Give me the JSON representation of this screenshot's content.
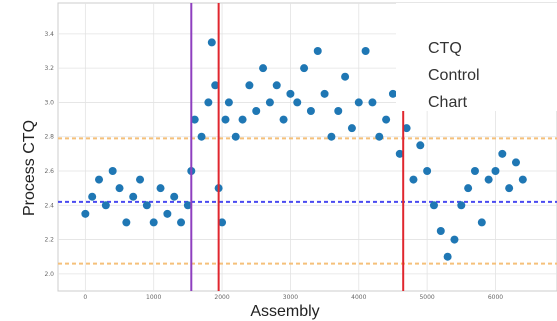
{
  "chart_data": {
    "type": "scatter",
    "ylabel": "Process CTQ",
    "xlabel": "Assembly",
    "annotation": [
      "CTQ",
      "Control",
      "Chart"
    ],
    "xlim": [
      -400,
      6900
    ],
    "ylim": [
      1.9,
      3.58
    ],
    "x_ticks": [
      "0",
      "1000",
      "2000",
      "3000",
      "4000",
      "5000",
      "6000"
    ],
    "y_ticks": [
      "2.0",
      "2.2",
      "2.4",
      "2.6",
      "2.8",
      "3.0",
      "3.2",
      "3.4"
    ],
    "grid": true,
    "colors": {
      "points": "#1f77b4",
      "center_line": "#4a4af0",
      "limit_lines": "#f5c07a",
      "phase_red": "#e0262e",
      "phase_purple": "#8e3fbf"
    },
    "center_line": 2.42,
    "limit_lines": [
      2.06,
      2.79
    ],
    "phase_lines": [
      {
        "x": 1550,
        "color": "purple"
      },
      {
        "x": 1950,
        "color": "red"
      },
      {
        "x": 4650,
        "color": "red"
      }
    ],
    "series": [
      {
        "x": [
          0,
          100,
          200,
          300,
          400,
          500,
          600,
          700,
          800,
          900,
          1000,
          1100,
          1200,
          1300,
          1400,
          1500,
          1550,
          1600,
          1700,
          1800,
          1850,
          1900,
          1950,
          2000,
          2050,
          2100,
          2200,
          2300,
          2400,
          2500,
          2600,
          2700,
          2800,
          2900,
          3000,
          3100,
          3200,
          3300,
          3400,
          3500,
          3600,
          3700,
          3800,
          3900,
          4000,
          4100,
          4200,
          4300,
          4400,
          4500,
          4600,
          4700,
          4800,
          4900,
          5000,
          5100,
          5200,
          5300,
          5400,
          5500,
          5600,
          5700,
          5800,
          5900,
          6000,
          6100,
          6200,
          6300,
          6400
        ],
        "y": [
          2.35,
          2.45,
          2.55,
          2.4,
          2.6,
          2.5,
          2.3,
          2.45,
          2.55,
          2.4,
          2.3,
          2.5,
          2.35,
          2.45,
          2.3,
          2.4,
          2.6,
          2.9,
          2.8,
          3.0,
          3.35,
          3.1,
          2.5,
          2.3,
          2.9,
          3.0,
          2.8,
          2.9,
          3.1,
          2.95,
          3.2,
          3.0,
          3.1,
          2.9,
          3.05,
          3.0,
          3.2,
          2.95,
          3.3,
          3.05,
          2.8,
          2.95,
          3.15,
          2.85,
          3.0,
          3.3,
          3.0,
          2.8,
          2.9,
          3.05,
          2.7,
          2.85,
          2.55,
          2.75,
          2.6,
          2.4,
          2.25,
          2.1,
          2.2,
          2.4,
          2.5,
          2.6,
          2.3,
          2.55,
          2.6,
          2.7,
          2.5,
          2.65,
          2.55
        ]
      }
    ]
  }
}
